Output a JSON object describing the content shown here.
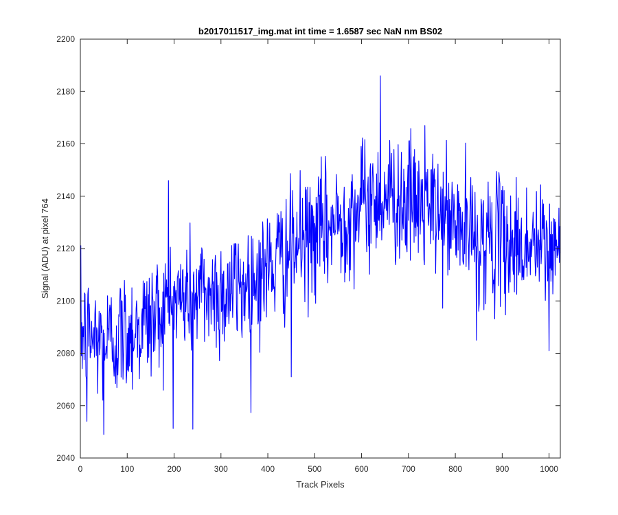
{
  "chart_data": {
    "type": "line",
    "title": "b2017011517_img.mat int time = 1.6587 sec  NaN nm BS02",
    "xlabel": "Track Pixels",
    "ylabel": "Signal (ADU) at pixel 764",
    "xlim": [
      0,
      1024
    ],
    "ylim": [
      2040,
      2200
    ],
    "xticks": [
      0,
      100,
      200,
      300,
      400,
      500,
      600,
      700,
      800,
      900,
      1000
    ],
    "yticks": [
      2040,
      2060,
      2080,
      2100,
      2120,
      2140,
      2160,
      2180,
      2200
    ],
    "grid": false,
    "box": true,
    "series": [
      {
        "color": "#0000ff",
        "x_start": 1,
        "x_step": 1,
        "trend": {
          "x": [
            0,
            50,
            100,
            150,
            200,
            250,
            300,
            350,
            400,
            450,
            500,
            550,
            600,
            650,
            700,
            750,
            800,
            850,
            900,
            950,
            1024
          ],
          "y": [
            2088,
            2084,
            2088,
            2093,
            2100,
            2103,
            2103,
            2106,
            2112,
            2120,
            2125,
            2130,
            2137,
            2140,
            2138,
            2134,
            2129,
            2124,
            2123,
            2121,
            2120
          ]
        },
        "noise_amplitude": 12,
        "peaks": [
          {
            "x": 14,
            "y": 2054
          },
          {
            "x": 50,
            "y": 2049
          },
          {
            "x": 188,
            "y": 2146
          },
          {
            "x": 240,
            "y": 2051
          },
          {
            "x": 450,
            "y": 2071
          },
          {
            "x": 640,
            "y": 2186
          },
          {
            "x": 735,
            "y": 2167
          },
          {
            "x": 845,
            "y": 2085
          },
          {
            "x": 1000,
            "y": 2081
          }
        ]
      }
    ]
  }
}
